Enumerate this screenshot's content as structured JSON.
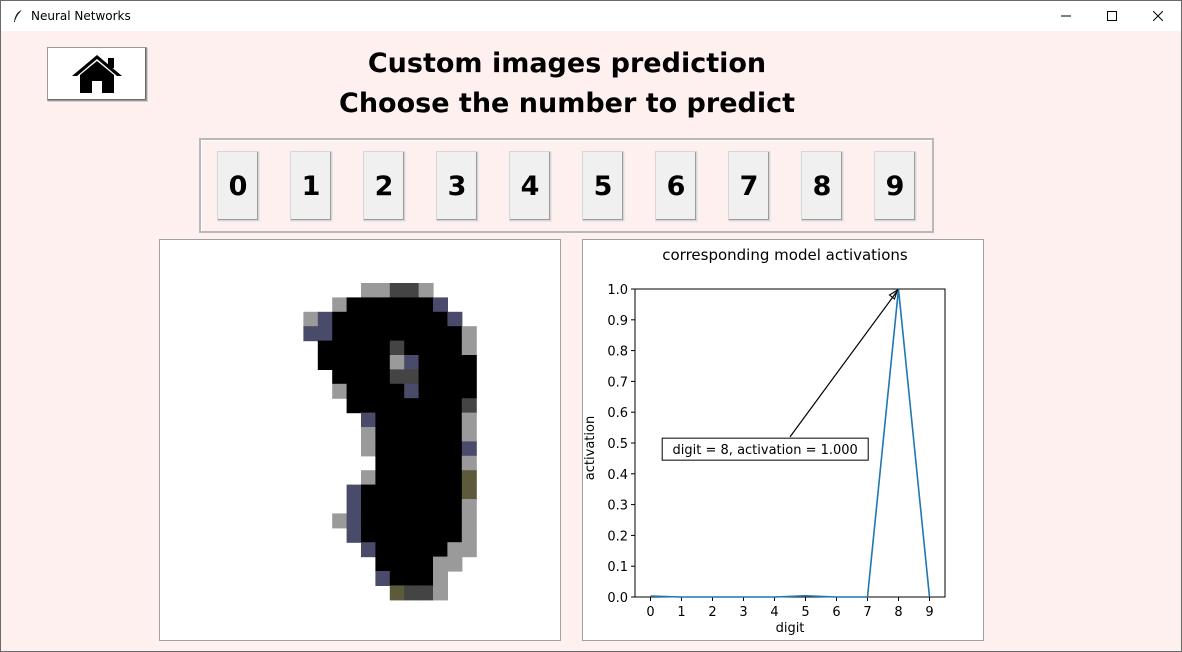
{
  "window": {
    "title": "Neural Networks",
    "icons": [
      "feather-icon",
      "minimize-icon",
      "maximize-icon",
      "close-icon"
    ]
  },
  "header": {
    "home_icon": "home-icon",
    "title_line1": "Custom images prediction",
    "title_line2": "Choose the number to predict"
  },
  "digits": [
    "0",
    "1",
    "2",
    "3",
    "4",
    "5",
    "6",
    "7",
    "8",
    "9"
  ],
  "image_panel": {
    "description_icon": "digit-image"
  },
  "chart_data": {
    "type": "line",
    "title": "corresponding model activations",
    "xlabel": "digit",
    "ylabel": "activation",
    "x": [
      0,
      1,
      2,
      3,
      4,
      5,
      6,
      7,
      8,
      9
    ],
    "xticks": [
      "0",
      "1",
      "2",
      "3",
      "4",
      "5",
      "6",
      "7",
      "8",
      "9"
    ],
    "yticks": [
      "0.0",
      "0.1",
      "0.2",
      "0.3",
      "0.4",
      "0.5",
      "0.6",
      "0.7",
      "0.8",
      "0.9",
      "1.0"
    ],
    "xlim": [
      -0.5,
      9.5
    ],
    "ylim": [
      0.0,
      1.0
    ],
    "series": [
      {
        "values": [
          0.003,
          0.0,
          0.0,
          0.0,
          0.0,
          0.004,
          0.0,
          0.0,
          1.0,
          0.0
        ],
        "color": "#1f77b4"
      }
    ],
    "annotation": {
      "text": "digit = 8, activation = 1.000",
      "x": 8,
      "y": 1.0
    },
    "grid": false
  }
}
